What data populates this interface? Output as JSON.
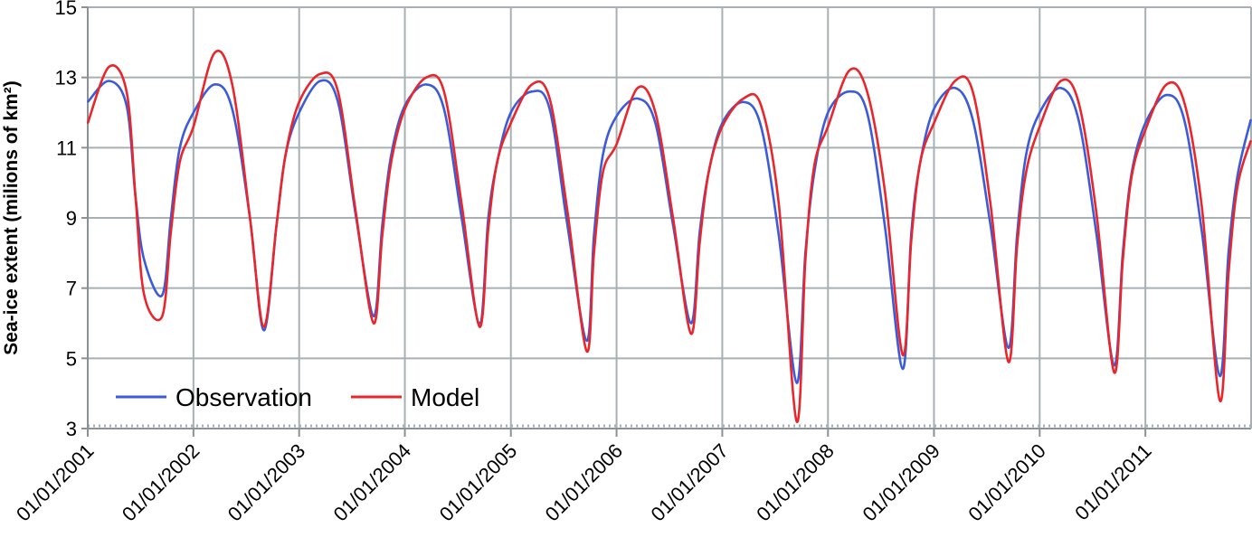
{
  "chart_data": {
    "type": "line",
    "title": "",
    "xlabel": "",
    "ylabel": "Sea-ice extent (milions of km²)",
    "ylim": [
      3,
      15
    ],
    "xlim": [
      "2001-01-01",
      "2012-01-01"
    ],
    "yticks": [
      "3",
      "5",
      "7",
      "9",
      "11",
      "13",
      "15"
    ],
    "xticks": [
      "01/01/2001",
      "01/01/2002",
      "01/01/2003",
      "01/01/2004",
      "01/01/2005",
      "01/01/2006",
      "01/01/2007",
      "01/01/2008",
      "01/01/2009",
      "01/01/2010",
      "01/01/2011"
    ],
    "grid": true,
    "legend": "bottom-left",
    "colors": {
      "Observation": "#3b5bdb",
      "Model": "#e8262b",
      "grid": "#a8b0b4"
    },
    "series": [
      {
        "name": "Observation",
        "x": [
          "2001-01-01",
          "2001-03-15",
          "2001-05-15",
          "2001-06-15",
          "2001-07-15",
          "2001-09-15",
          "2001-10-15",
          "2001-11-15",
          "2002-01-01",
          "2002-03-15",
          "2002-05-15",
          "2002-07-15",
          "2002-09-01",
          "2002-10-15",
          "2002-11-15",
          "2003-01-01",
          "2003-03-15",
          "2003-05-15",
          "2003-07-15",
          "2003-09-15",
          "2003-10-15",
          "2003-11-15",
          "2004-01-01",
          "2004-03-15",
          "2004-05-15",
          "2004-07-15",
          "2004-09-15",
          "2004-10-15",
          "2004-11-15",
          "2005-01-01",
          "2005-03-15",
          "2005-05-15",
          "2005-07-15",
          "2005-09-20",
          "2005-10-15",
          "2005-11-15",
          "2006-01-01",
          "2006-03-15",
          "2006-05-15",
          "2006-07-15",
          "2006-09-15",
          "2006-10-15",
          "2006-11-15",
          "2007-01-01",
          "2007-03-15",
          "2007-05-15",
          "2007-07-15",
          "2007-09-15",
          "2007-10-15",
          "2007-11-15",
          "2008-01-01",
          "2008-03-15",
          "2008-05-15",
          "2008-07-15",
          "2008-09-15",
          "2008-10-15",
          "2008-11-15",
          "2009-01-01",
          "2009-03-15",
          "2009-05-15",
          "2009-07-15",
          "2009-09-15",
          "2009-10-15",
          "2009-11-15",
          "2010-01-01",
          "2010-03-15",
          "2010-05-15",
          "2010-07-15",
          "2010-09-15",
          "2010-10-15",
          "2010-11-15",
          "2011-01-01",
          "2011-03-15",
          "2011-05-15",
          "2011-07-15",
          "2011-09-15",
          "2011-10-15",
          "2011-11-15",
          "2011-12-31"
        ],
        "y": [
          12.3,
          12.9,
          12.2,
          9.6,
          7.8,
          6.8,
          9.0,
          11.0,
          12.0,
          12.8,
          12.1,
          9.0,
          5.8,
          8.8,
          10.8,
          12.0,
          12.9,
          12.3,
          9.1,
          6.2,
          8.8,
          10.8,
          12.2,
          12.8,
          12.1,
          9.0,
          6.0,
          9.0,
          10.6,
          12.0,
          12.6,
          12.1,
          8.8,
          5.5,
          8.5,
          10.8,
          11.9,
          12.4,
          11.7,
          8.8,
          6.0,
          8.6,
          10.3,
          11.7,
          12.3,
          11.6,
          8.5,
          4.3,
          8.0,
          10.3,
          12.0,
          12.6,
          12.0,
          8.8,
          4.7,
          8.6,
          10.6,
          12.1,
          12.7,
          11.8,
          8.8,
          5.3,
          8.5,
          10.8,
          12.0,
          12.7,
          11.8,
          8.6,
          4.8,
          8.0,
          10.3,
          11.7,
          12.5,
          11.8,
          8.6,
          4.5,
          8.0,
          10.2,
          11.8
        ]
      },
      {
        "name": "Model",
        "x": [
          "2001-01-01",
          "2001-03-15",
          "2001-05-15",
          "2001-06-15",
          "2001-07-15",
          "2001-09-15",
          "2001-10-15",
          "2001-11-15",
          "2002-01-01",
          "2002-03-15",
          "2002-05-15",
          "2002-07-15",
          "2002-09-01",
          "2002-10-15",
          "2002-11-15",
          "2003-01-01",
          "2003-03-15",
          "2003-05-15",
          "2003-07-15",
          "2003-09-15",
          "2003-10-15",
          "2003-11-15",
          "2004-01-01",
          "2004-03-15",
          "2004-05-15",
          "2004-07-15",
          "2004-09-15",
          "2004-10-15",
          "2004-11-15",
          "2005-01-01",
          "2005-03-15",
          "2005-05-15",
          "2005-07-15",
          "2005-09-20",
          "2005-10-15",
          "2005-11-15",
          "2006-01-01",
          "2006-03-15",
          "2006-05-15",
          "2006-07-15",
          "2006-09-15",
          "2006-10-15",
          "2006-11-15",
          "2007-01-01",
          "2007-03-15",
          "2007-05-15",
          "2007-07-15",
          "2007-09-15",
          "2007-10-15",
          "2007-11-15",
          "2008-01-01",
          "2008-03-15",
          "2008-05-15",
          "2008-07-15",
          "2008-09-15",
          "2008-10-15",
          "2008-11-15",
          "2009-01-01",
          "2009-03-15",
          "2009-05-15",
          "2009-07-15",
          "2009-09-15",
          "2009-10-15",
          "2009-11-15",
          "2010-01-01",
          "2010-03-15",
          "2010-05-15",
          "2010-07-15",
          "2010-09-15",
          "2010-10-15",
          "2010-11-15",
          "2011-01-01",
          "2011-03-15",
          "2011-05-15",
          "2011-07-15",
          "2011-09-15",
          "2011-10-15",
          "2011-11-15",
          "2011-12-31"
        ],
        "y": [
          11.7,
          13.3,
          12.6,
          9.6,
          6.8,
          6.2,
          8.6,
          10.6,
          11.6,
          13.7,
          12.8,
          9.0,
          5.9,
          8.8,
          10.8,
          12.3,
          13.1,
          12.6,
          9.2,
          6.0,
          8.5,
          10.6,
          12.1,
          13.0,
          12.6,
          9.4,
          5.9,
          8.7,
          10.6,
          11.7,
          12.8,
          12.4,
          9.2,
          5.2,
          8.0,
          10.3,
          11.1,
          12.7,
          12.0,
          9.0,
          5.7,
          8.3,
          10.3,
          11.6,
          12.4,
          12.2,
          9.4,
          3.2,
          7.8,
          10.5,
          11.6,
          13.2,
          12.6,
          9.8,
          5.1,
          8.4,
          10.6,
          11.7,
          12.9,
          12.6,
          9.4,
          4.9,
          8.2,
          10.3,
          11.6,
          12.9,
          12.3,
          9.2,
          4.6,
          7.8,
          10.2,
          11.5,
          12.8,
          12.3,
          9.3,
          3.8,
          7.4,
          9.9,
          11.2
        ]
      }
    ]
  }
}
